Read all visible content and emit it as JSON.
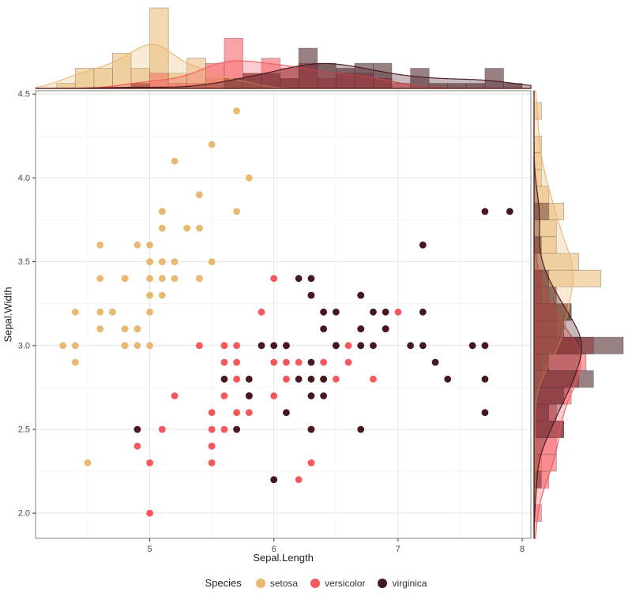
{
  "legend": {
    "title": "Species"
  },
  "chart_data": {
    "type": "scatter",
    "title": "",
    "xlabel": "Sepal.Length",
    "ylabel": "Sepal.Width",
    "xlim": [
      4.08,
      8.07
    ],
    "ylim": [
      1.85,
      4.52
    ],
    "x_ticks": [
      {
        "v": 5,
        "label": "5"
      },
      {
        "v": 6,
        "label": "6"
      },
      {
        "v": 7,
        "label": "7"
      },
      {
        "v": 8,
        "label": "8"
      }
    ],
    "y_ticks": [
      {
        "v": 2.0,
        "label": "2.0"
      },
      {
        "v": 2.5,
        "label": "2.5"
      },
      {
        "v": 3.0,
        "label": "3.0"
      },
      {
        "v": 3.5,
        "label": "3.5"
      },
      {
        "v": 4.0,
        "label": "4.0"
      },
      {
        "v": 4.5,
        "label": "4.5"
      }
    ],
    "grid": true,
    "legend_position": "bottom",
    "marginals": {
      "top": "histogram+density of Sepal.Length by Species",
      "right": "histogram+density of Sepal.Width by Species"
    },
    "series": [
      {
        "name": "setosa",
        "color": "#E9B872",
        "points": [
          [
            5.1,
            3.5
          ],
          [
            4.9,
            3.0
          ],
          [
            4.7,
            3.2
          ],
          [
            4.6,
            3.1
          ],
          [
            5.0,
            3.6
          ],
          [
            5.4,
            3.9
          ],
          [
            4.6,
            3.4
          ],
          [
            5.0,
            3.4
          ],
          [
            4.4,
            2.9
          ],
          [
            4.9,
            3.1
          ],
          [
            5.4,
            3.7
          ],
          [
            4.8,
            3.4
          ],
          [
            4.8,
            3.0
          ],
          [
            4.3,
            3.0
          ],
          [
            5.8,
            4.0
          ],
          [
            5.7,
            4.4
          ],
          [
            5.4,
            3.9
          ],
          [
            5.1,
            3.5
          ],
          [
            5.7,
            3.8
          ],
          [
            5.1,
            3.8
          ],
          [
            5.4,
            3.4
          ],
          [
            5.1,
            3.7
          ],
          [
            4.6,
            3.6
          ],
          [
            5.1,
            3.3
          ],
          [
            4.8,
            3.4
          ],
          [
            5.0,
            3.0
          ],
          [
            5.0,
            3.4
          ],
          [
            5.2,
            3.5
          ],
          [
            5.2,
            3.4
          ],
          [
            4.7,
            3.2
          ],
          [
            4.8,
            3.1
          ],
          [
            5.4,
            3.4
          ],
          [
            5.2,
            4.1
          ],
          [
            5.5,
            4.2
          ],
          [
            4.9,
            3.1
          ],
          [
            5.0,
            3.2
          ],
          [
            5.5,
            3.5
          ],
          [
            4.9,
            3.6
          ],
          [
            4.4,
            3.0
          ],
          [
            5.1,
            3.4
          ],
          [
            5.0,
            3.5
          ],
          [
            4.5,
            2.3
          ],
          [
            4.4,
            3.2
          ],
          [
            5.0,
            3.5
          ],
          [
            5.1,
            3.8
          ],
          [
            4.8,
            3.0
          ],
          [
            5.1,
            3.8
          ],
          [
            4.6,
            3.2
          ],
          [
            5.3,
            3.7
          ],
          [
            5.0,
            3.3
          ]
        ]
      },
      {
        "name": "versicolor",
        "color": "#F4585C",
        "points": [
          [
            7.0,
            3.2
          ],
          [
            6.4,
            3.2
          ],
          [
            6.9,
            3.1
          ],
          [
            5.5,
            2.3
          ],
          [
            6.5,
            2.8
          ],
          [
            5.7,
            2.8
          ],
          [
            6.3,
            3.3
          ],
          [
            4.9,
            2.4
          ],
          [
            6.6,
            2.9
          ],
          [
            5.2,
            2.7
          ],
          [
            5.0,
            2.0
          ],
          [
            5.9,
            3.0
          ],
          [
            6.0,
            2.2
          ],
          [
            6.1,
            2.9
          ],
          [
            5.6,
            2.9
          ],
          [
            6.7,
            3.1
          ],
          [
            5.6,
            3.0
          ],
          [
            5.8,
            2.7
          ],
          [
            6.2,
            2.2
          ],
          [
            5.6,
            2.5
          ],
          [
            5.9,
            3.2
          ],
          [
            6.1,
            2.8
          ],
          [
            6.3,
            2.5
          ],
          [
            6.1,
            2.8
          ],
          [
            6.4,
            2.9
          ],
          [
            6.6,
            3.0
          ],
          [
            6.8,
            2.8
          ],
          [
            6.7,
            3.0
          ],
          [
            6.0,
            2.9
          ],
          [
            5.7,
            2.6
          ],
          [
            5.5,
            2.4
          ],
          [
            5.5,
            2.4
          ],
          [
            5.8,
            2.7
          ],
          [
            6.0,
            2.7
          ],
          [
            5.4,
            3.0
          ],
          [
            6.0,
            3.4
          ],
          [
            6.7,
            3.1
          ],
          [
            6.3,
            2.3
          ],
          [
            5.6,
            3.0
          ],
          [
            5.5,
            2.5
          ],
          [
            5.5,
            2.6
          ],
          [
            6.1,
            3.0
          ],
          [
            5.8,
            2.6
          ],
          [
            5.0,
            2.3
          ],
          [
            5.6,
            2.7
          ],
          [
            5.7,
            3.0
          ],
          [
            5.7,
            2.9
          ],
          [
            6.2,
            2.9
          ],
          [
            5.1,
            2.5
          ],
          [
            5.7,
            2.8
          ]
        ]
      },
      {
        "name": "virginica",
        "color": "#45171E",
        "points": [
          [
            6.3,
            3.3
          ],
          [
            5.8,
            2.7
          ],
          [
            7.1,
            3.0
          ],
          [
            6.3,
            2.9
          ],
          [
            6.5,
            3.0
          ],
          [
            7.6,
            3.0
          ],
          [
            4.9,
            2.5
          ],
          [
            7.3,
            2.9
          ],
          [
            6.7,
            2.5
          ],
          [
            7.2,
            3.6
          ],
          [
            6.5,
            3.2
          ],
          [
            6.4,
            2.7
          ],
          [
            6.8,
            3.0
          ],
          [
            5.7,
            2.5
          ],
          [
            5.8,
            2.8
          ],
          [
            6.4,
            3.2
          ],
          [
            6.5,
            3.0
          ],
          [
            7.7,
            3.8
          ],
          [
            7.7,
            2.6
          ],
          [
            6.0,
            2.2
          ],
          [
            6.9,
            3.2
          ],
          [
            5.6,
            2.8
          ],
          [
            7.7,
            2.8
          ],
          [
            6.3,
            2.7
          ],
          [
            6.7,
            3.3
          ],
          [
            7.2,
            3.2
          ],
          [
            6.2,
            2.8
          ],
          [
            6.1,
            3.0
          ],
          [
            6.4,
            2.8
          ],
          [
            7.2,
            3.0
          ],
          [
            7.4,
            2.8
          ],
          [
            7.9,
            3.8
          ],
          [
            6.4,
            2.8
          ],
          [
            6.3,
            2.8
          ],
          [
            6.1,
            2.6
          ],
          [
            7.7,
            3.0
          ],
          [
            6.3,
            3.4
          ],
          [
            6.4,
            3.1
          ],
          [
            6.0,
            3.0
          ],
          [
            6.9,
            3.1
          ],
          [
            6.7,
            3.1
          ],
          [
            6.9,
            3.1
          ],
          [
            5.8,
            2.7
          ],
          [
            6.8,
            3.2
          ],
          [
            6.7,
            3.3
          ],
          [
            6.7,
            3.0
          ],
          [
            6.3,
            2.5
          ],
          [
            6.5,
            3.0
          ],
          [
            6.2,
            3.4
          ],
          [
            5.9,
            3.0
          ]
        ]
      }
    ]
  }
}
